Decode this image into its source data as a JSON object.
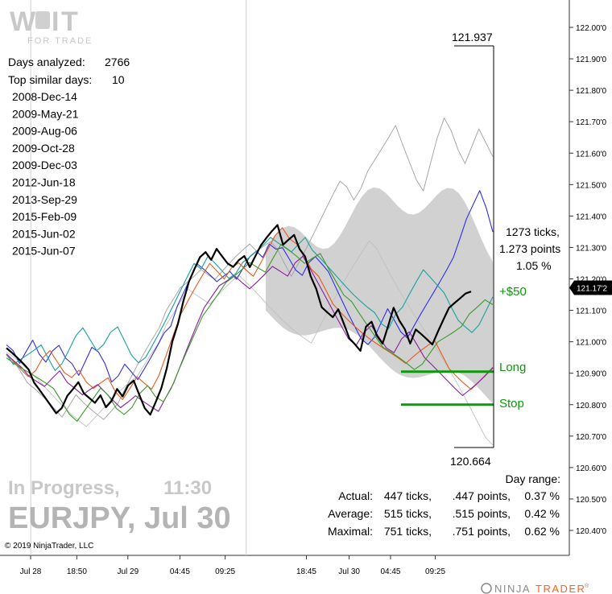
{
  "logo": {
    "top": "W",
    "sub": "FOR TRADE",
    "mid": "T",
    "accent_color": "#b0b0b0"
  },
  "info": {
    "days_analyzed_label": "Days analyzed:",
    "days_analyzed_value": "2766",
    "top_similar_label": "Top similar days:",
    "top_similar_value": "10",
    "similar_days": [
      "2008-Dec-14",
      "2009-May-21",
      "2009-Aug-06",
      "2009-Oct-28",
      "2009-Dec-03",
      "2012-Jun-18",
      "2013-Sep-29",
      "2015-Feb-09",
      "2015-Jun-02",
      "2015-Jun-07"
    ]
  },
  "status": {
    "progress": "In Progress,",
    "time": "11:30",
    "instrument": "EURJPY, Jul 30"
  },
  "copyright": "© 2019 NinjaTrader, LLC",
  "brand": {
    "ninja": "NINJA",
    "trader": "TRADER",
    "reg": "®",
    "accent": "#f26522"
  },
  "annotations": {
    "high": "121.937",
    "low": "120.664",
    "ticks_line": "1273 ticks,",
    "points_line": "1.273 points",
    "percent_line": "1.05 %",
    "profit": "+$50",
    "long": "Long",
    "stop": "Stop",
    "green": "#0a9a0a"
  },
  "day_range": {
    "title": "Day range:",
    "rows": [
      {
        "label": "Actual:",
        "ticks": "447 ticks,",
        "points": ".447 points,",
        "pct": "0.37 %"
      },
      {
        "label": "Average:",
        "ticks": "515 ticks,",
        "points": ".515 points,",
        "pct": "0.42 %"
      },
      {
        "label": "Maximal:",
        "ticks": "751 ticks,",
        "points": ".751 points,",
        "pct": "0.62 %"
      }
    ]
  },
  "chart_data": {
    "type": "line",
    "title": "",
    "xlabel": "",
    "ylabel": "",
    "ylim": [
      120.35,
      122.1
    ],
    "grid": false,
    "y_ticks": [
      "122.00'0",
      "121.90'0",
      "121.80'0",
      "121.70'0",
      "121.60'0",
      "121.50'0",
      "121.40'0",
      "121.30'0",
      "121.20'0",
      "121.10'0",
      "121.00'0",
      "120.90'0",
      "120.80'0",
      "120.70'0",
      "120.60'0",
      "120.50'0",
      "120.40'0"
    ],
    "y_tick_values": [
      122.0,
      121.9,
      121.8,
      121.7,
      121.6,
      121.5,
      121.4,
      121.3,
      121.2,
      121.1,
      121.0,
      120.9,
      120.8,
      120.7,
      120.6,
      120.5,
      120.4
    ],
    "x_ticks": [
      "Jul 28",
      "18:50",
      "Jul 29",
      "04:45",
      "09:25",
      "18:45",
      "Jul 30",
      "04:45",
      "09:25"
    ],
    "x_tick_index": [
      0.0,
      0.095,
      0.2,
      0.307,
      0.4,
      0.567,
      0.655,
      0.74,
      0.832
    ],
    "session_dividers": [
      0.05,
      0.493
    ],
    "current_price": "121.17'2",
    "current_value": 121.172,
    "long_level": 120.905,
    "stop_level": 120.8,
    "profit_level": 121.155,
    "projection_high": 121.937,
    "projection_low": 120.664,
    "series": [
      {
        "name": "",
        "color": "#000000",
        "width": 2.2,
        "values": [
          120.98,
          120.96,
          120.94,
          120.92,
          120.9,
          120.86,
          120.84,
          120.82,
          120.8,
          120.78,
          120.8,
          120.84,
          120.86,
          120.88,
          120.84,
          120.82,
          120.8,
          120.82,
          120.78,
          120.8,
          120.84,
          120.82,
          120.86,
          120.88,
          120.84,
          120.8,
          120.78,
          120.82,
          120.86,
          120.92,
          121.0,
          121.05,
          121.12,
          121.18,
          121.22,
          121.26,
          121.28,
          121.26,
          121.3,
          121.28,
          121.26,
          121.25,
          121.27,
          121.28,
          121.24,
          121.27,
          121.3,
          121.32,
          121.34,
          121.36,
          121.3,
          121.32,
          121.34,
          121.3,
          121.28,
          121.22,
          121.18,
          121.12,
          121.1,
          121.08,
          121.1,
          121.05,
          121.0,
          120.98,
          120.96,
          121.04,
          121.06,
          121.02,
          121.0,
          121.06,
          121.12,
          121.08,
          121.05,
          121.0,
          121.04,
          121.02,
          121.0,
          120.98,
          121.02,
          121.06,
          121.1,
          121.12,
          121.14,
          121.16,
          121.17
        ]
      },
      {
        "name": "",
        "color": "#2e2ee6",
        "width": 1.1,
        "values": [
          120.98,
          120.96,
          120.92,
          120.96,
          121.0,
          120.96,
          120.94,
          120.98,
          121.0,
          120.96,
          120.94,
          120.9,
          120.94,
          120.98,
          120.96,
          120.92,
          120.86,
          120.88,
          120.92,
          120.9,
          120.88,
          120.92,
          120.96,
          121.0,
          121.04,
          121.06,
          121.12,
          121.16,
          121.2,
          121.24,
          121.22,
          121.2,
          121.18,
          121.2,
          121.22,
          121.2,
          121.24,
          121.28,
          121.3,
          121.28,
          121.32,
          121.3,
          121.3,
          121.26,
          121.22,
          121.2,
          121.24,
          121.26,
          121.24,
          121.22,
          121.18,
          121.14,
          121.1,
          121.06,
          121.02,
          121.0,
          121.02,
          121.06,
          121.1,
          121.06,
          121.02,
          121.0,
          121.04,
          121.08,
          121.12,
          121.16,
          121.2,
          121.24,
          121.28,
          121.34,
          121.4,
          121.44,
          121.48,
          121.42,
          121.34
        ]
      },
      {
        "name": "",
        "color": "#1aa0a0",
        "width": 1.1,
        "values": [
          120.95,
          120.92,
          120.94,
          120.96,
          120.98,
          121.0,
          120.96,
          120.92,
          120.94,
          120.98,
          121.02,
          121.04,
          121.0,
          120.96,
          120.98,
          121.02,
          121.04,
          121.0,
          120.96,
          120.94,
          120.96,
          121.0,
          121.04,
          121.08,
          121.12,
          121.16,
          121.2,
          121.24,
          121.22,
          121.26,
          121.24,
          121.22,
          121.2,
          121.22,
          121.26,
          121.28,
          121.3,
          121.32,
          121.34,
          121.32,
          121.3,
          121.28,
          121.3,
          121.32,
          121.28,
          121.26,
          121.24,
          121.22,
          121.2,
          121.18,
          121.16,
          121.14,
          121.12,
          121.1,
          121.06,
          121.04,
          121.08,
          121.1,
          121.14,
          121.18,
          121.22,
          121.2,
          121.18,
          121.16,
          121.12,
          121.08,
          121.06,
          121.04,
          121.06,
          121.1,
          121.14
        ]
      },
      {
        "name": "",
        "color": "#e85a1a",
        "width": 1.1,
        "values": [
          120.96,
          120.94,
          120.92,
          120.9,
          120.92,
          120.96,
          120.98,
          120.94,
          120.9,
          120.88,
          120.9,
          120.86,
          120.84,
          120.86,
          120.88,
          120.84,
          120.82,
          120.86,
          120.9,
          120.88,
          120.86,
          120.9,
          120.96,
          121.02,
          121.08,
          121.12,
          121.16,
          121.2,
          121.24,
          121.22,
          121.2,
          121.24,
          121.26,
          121.24,
          121.22,
          121.26,
          121.3,
          121.34,
          121.36,
          121.32,
          121.3,
          121.26,
          121.22,
          121.2,
          121.16,
          121.12,
          121.1,
          121.08,
          121.06,
          121.04,
          121.02,
          121.0,
          120.98,
          120.96,
          120.94,
          120.92,
          120.94,
          120.96,
          120.98,
          121.0,
          120.96,
          120.92,
          120.9,
          120.88,
          120.86,
          120.88,
          120.9,
          120.92
        ]
      },
      {
        "name": "",
        "color": "#8a1fa0",
        "width": 1.1,
        "values": [
          120.97,
          120.95,
          120.93,
          120.9,
          120.88,
          120.86,
          120.88,
          120.9,
          120.86,
          120.84,
          120.82,
          120.84,
          120.86,
          120.84,
          120.82,
          120.8,
          120.82,
          120.84,
          120.82,
          120.8,
          120.78,
          120.82,
          120.86,
          120.92,
          120.98,
          121.04,
          121.1,
          121.14,
          121.18,
          121.2,
          121.22,
          121.2,
          121.18,
          121.2,
          121.22,
          121.24,
          121.22,
          121.2,
          121.24,
          121.26,
          121.22,
          121.18,
          121.14,
          121.1,
          121.06,
          121.02,
          121.0,
          121.04,
          121.06,
          121.02,
          120.98,
          120.96,
          121.0,
          121.02,
          120.98,
          120.94,
          120.92,
          120.9,
          120.88,
          120.86,
          120.84,
          120.86,
          120.88,
          120.9,
          120.92
        ]
      },
      {
        "name": "",
        "color": "#3a9a2a",
        "width": 1.1,
        "values": [
          120.96,
          120.94,
          120.92,
          120.9,
          120.88,
          120.86,
          120.84,
          120.8,
          120.76,
          120.74,
          120.78,
          120.82,
          120.86,
          120.84,
          120.8,
          120.78,
          120.8,
          120.84,
          120.86,
          120.82,
          120.8,
          120.84,
          120.9,
          120.96,
          121.02,
          121.08,
          121.12,
          121.16,
          121.2,
          121.22,
          121.24,
          121.26,
          121.24,
          121.22,
          121.26,
          121.3,
          121.28,
          121.26,
          121.24,
          121.26,
          121.28,
          121.24,
          121.2,
          121.16,
          121.14,
          121.1,
          121.06,
          121.02,
          120.98,
          120.96,
          120.94,
          120.92,
          120.9,
          120.92,
          120.96,
          121.0,
          121.02,
          121.04,
          121.06,
          121.1,
          121.12,
          121.14,
          121.12
        ]
      },
      {
        "name": "",
        "color": "#a0a0a0",
        "width": 0.9,
        "values": [
          120.96,
          120.94,
          120.9,
          120.86,
          120.84,
          120.82,
          120.8,
          120.78,
          120.76,
          120.8,
          120.84,
          120.82,
          120.8,
          120.78,
          120.76,
          120.78,
          120.8,
          120.84,
          120.88,
          120.92,
          120.96,
          121.0,
          121.04,
          121.1,
          121.14,
          121.18,
          121.2,
          121.22,
          121.24,
          121.22,
          121.2,
          121.22,
          121.24,
          121.26,
          121.28,
          121.3,
          121.28,
          121.3,
          121.32,
          121.3,
          121.26,
          121.22,
          121.26,
          121.3,
          121.34,
          121.38,
          121.42,
          121.46,
          121.5,
          121.48,
          121.44,
          121.48,
          121.54,
          121.58,
          121.62,
          121.66,
          121.7,
          121.64,
          121.58,
          121.52,
          121.48,
          121.56,
          121.64,
          121.7,
          121.66,
          121.6,
          121.56,
          121.62,
          121.68,
          121.64,
          121.6
        ]
      },
      {
        "name": "",
        "color": "#c0c0c0",
        "width": 0.9,
        "values": [
          120.96,
          120.94,
          120.92,
          120.9,
          120.88,
          120.86,
          120.84,
          120.82,
          120.8,
          120.78,
          120.76,
          120.74,
          120.76,
          120.78,
          120.8,
          120.82,
          120.84,
          120.86,
          120.88,
          120.92,
          120.96,
          121.0,
          121.06,
          121.1,
          121.14,
          121.18,
          121.16,
          121.14,
          121.12,
          121.14,
          121.16,
          121.18,
          121.2,
          121.18,
          121.16,
          121.14,
          121.12,
          121.1,
          121.08,
          121.06,
          121.04,
          121.02,
          121.0,
          121.04,
          121.08,
          121.12,
          121.16,
          121.2,
          121.24,
          121.28,
          121.32,
          121.3,
          121.26,
          121.22,
          121.18,
          121.14,
          121.1,
          121.06,
          121.02,
          120.98,
          120.94,
          120.9,
          120.86,
          120.82,
          120.78,
          120.74,
          120.7,
          120.68
        ]
      }
    ]
  }
}
